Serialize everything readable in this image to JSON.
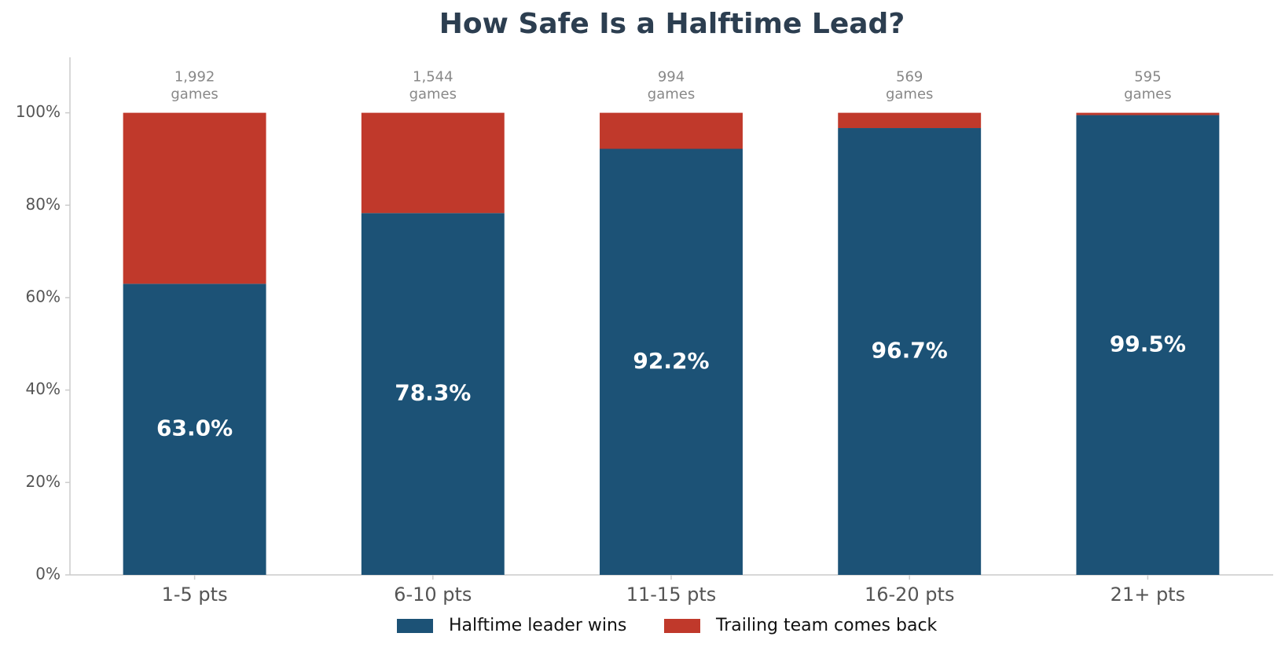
{
  "chart_data": {
    "type": "stacked-bar",
    "title": "How Safe Is a Halftime Lead?",
    "categories": [
      "1-5 pts",
      "6-10 pts",
      "11-15 pts",
      "16-20 pts",
      "21+ pts"
    ],
    "series": [
      {
        "name": "Halftime leader wins",
        "color": "#1c5276",
        "values": [
          63.0,
          78.3,
          92.2,
          96.7,
          99.5
        ],
        "value_labels": [
          "63.0%",
          "78.3%",
          "92.2%",
          "96.7%",
          "99.5%"
        ]
      },
      {
        "name": "Trailing team comes back",
        "color": "#c0392b",
        "values": [
          37.0,
          21.7,
          7.8,
          3.3,
          0.5
        ]
      }
    ],
    "game_counts": {
      "values": [
        1992,
        1544,
        994,
        569,
        595
      ],
      "value_labels": [
        "1,992",
        "1,544",
        "994",
        "569",
        "595"
      ],
      "unit": "games"
    },
    "ylim": [
      0,
      112
    ],
    "yticks": [
      {
        "value": 0,
        "label": "0%"
      },
      {
        "value": 20,
        "label": "20%"
      },
      {
        "value": 40,
        "label": "40%"
      },
      {
        "value": 60,
        "label": "60%"
      },
      {
        "value": 80,
        "label": "80%"
      },
      {
        "value": 100,
        "label": "100%"
      }
    ],
    "legend": "bottom"
  }
}
